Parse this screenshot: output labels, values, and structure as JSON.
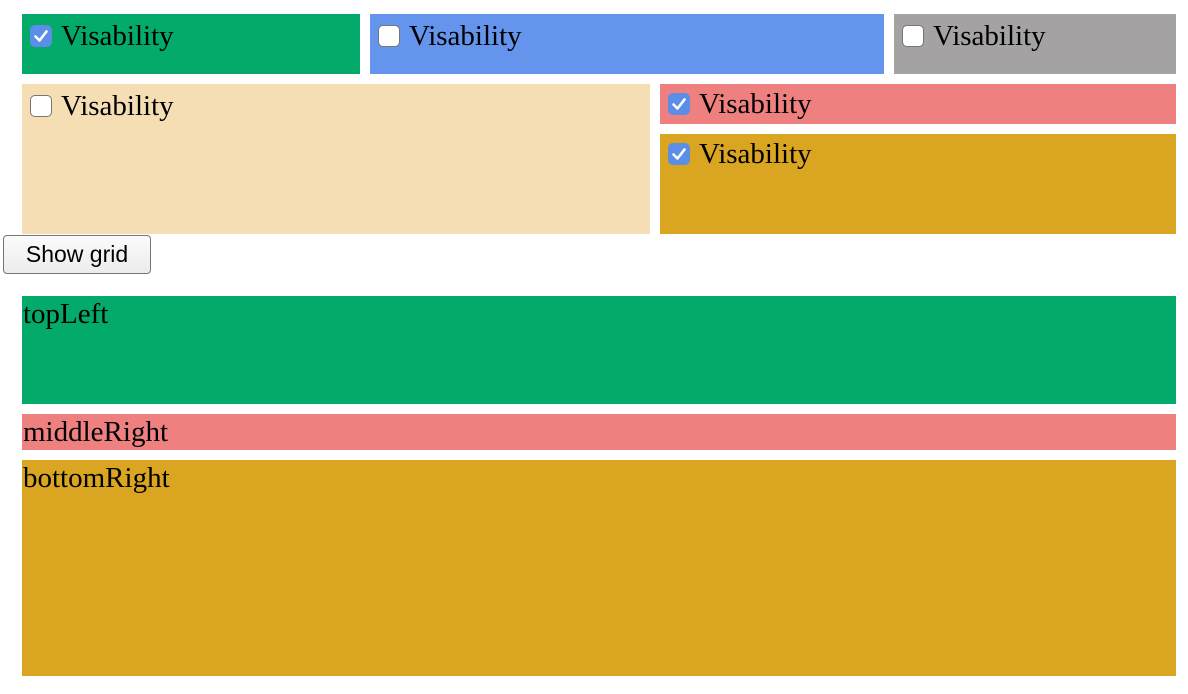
{
  "toggles": {
    "topLeft": {
      "label": "Visability",
      "checked": true,
      "color": "#03aa6a"
    },
    "topMiddle": {
      "label": "Visability",
      "checked": false,
      "color": "#6494ec"
    },
    "topRight": {
      "label": "Visability",
      "checked": false,
      "color": "#a4a2a2"
    },
    "middleLeft": {
      "label": "Visability",
      "checked": false,
      "color": "#f5deb3"
    },
    "middleRight": {
      "label": "Visability",
      "checked": true,
      "color": "#ef8080"
    },
    "bottomRight": {
      "label": "Visability",
      "checked": true,
      "color": "#daa520"
    }
  },
  "show_grid_button": {
    "label": "Show grid"
  },
  "grid": {
    "topLeft": {
      "label": "topLeft",
      "color": "#03aa6a"
    },
    "middleRight": {
      "label": "middleRight",
      "color": "#ef8080"
    },
    "bottomRight": {
      "label": "bottomRight",
      "color": "#daa520"
    }
  }
}
